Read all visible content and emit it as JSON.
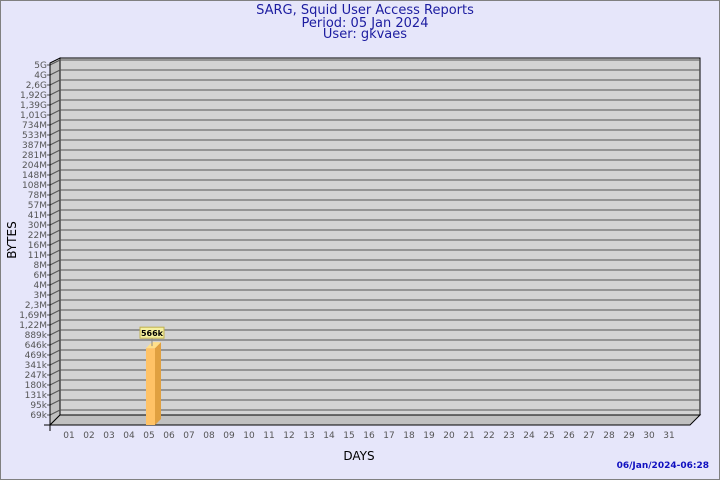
{
  "chart_data": {
    "type": "bar",
    "title": "SARG, Squid User Access Reports",
    "subtitle": [
      "Period: 05 Jan 2024",
      "User: gkvaes"
    ],
    "xlabel": "DAYS",
    "ylabel": "BYTES",
    "y_scale": "log",
    "y_tick_labels": [
      "5G",
      "4G",
      "2,6G",
      "1,92G",
      "1,39G",
      "1,01G",
      "734M",
      "533M",
      "387M",
      "281M",
      "204M",
      "148M",
      "108M",
      "78M",
      "57M",
      "41M",
      "30M",
      "22M",
      "16M",
      "11M",
      "8M",
      "6M",
      "4M",
      "3M",
      "2,3M",
      "1,69M",
      "1,22M",
      "889k",
      "646k",
      "469k",
      "341k",
      "247k",
      "180k",
      "131k",
      "95k",
      "69k"
    ],
    "categories": [
      "01",
      "02",
      "03",
      "04",
      "05",
      "06",
      "07",
      "08",
      "09",
      "10",
      "11",
      "12",
      "13",
      "14",
      "15",
      "16",
      "17",
      "18",
      "19",
      "20",
      "21",
      "22",
      "23",
      "24",
      "25",
      "26",
      "27",
      "28",
      "29",
      "30",
      "31"
    ],
    "bars": [
      {
        "category": "05",
        "value": 566000,
        "label": "566k"
      }
    ],
    "grid": true,
    "colors": {
      "background": "#e6e6fa",
      "plot": "#d3d3d3",
      "wall": "#c0c0c0",
      "bar": "#ffc266",
      "bar_side": "#e0a040",
      "title": "#1c1ca0"
    }
  },
  "footer": {
    "timestamp": "06/Jan/2024-06:28"
  }
}
